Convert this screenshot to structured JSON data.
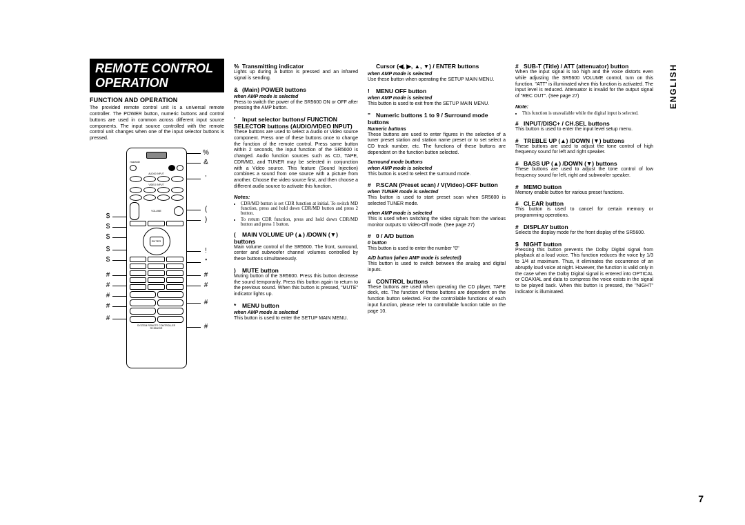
{
  "page": {
    "number": "7",
    "language_tab": "ENGLISH"
  },
  "title": "REMOTE CONTROL OPERATION",
  "func_op_heading": "FUNCTION AND OPERATION",
  "intro": "The provided remote control unit is a universal remote controller. The POWER button, numeric buttons and control buttons are used in common across different input source components. The input source controlled with the remote control unit changes when one of the input selector buttons is pressed.",
  "callouts_left": [
    "$",
    "$",
    "$",
    "$",
    "$",
    "#",
    "#",
    "#",
    "#",
    "#"
  ],
  "callouts_right": [
    "%",
    "&",
    "'",
    "(",
    ")",
    "!",
    "\"",
    "#",
    "#",
    "#",
    "#"
  ],
  "sections_col2": [
    {
      "sym": "%",
      "head": "Transmitting indicator",
      "body": "Lights up during a button is pressed and an infrared signal is sending."
    },
    {
      "sym": "&",
      "head": "(Main) POWER buttons",
      "sub": "when AMP mode is selected",
      "body": "Press to switch the power of the SR5600 ON or OFF after pressing the AMP button."
    },
    {
      "sym": "'",
      "head": "Input selector buttons/ FUNCTION SELECTOR buttons (AUDIO/VIDEO INPUT)",
      "body": "These buttons are used to select a Audio or Video source component. Press one of these buttons once to change the function of the remote control. Press same button within 2 seconds, the input function of the SR5600 is changed. Audio function sources such as CD, TAPE, CDR/MD, and TUNER may be selected in conjunction with a Video source. This feature (Sound Injection) combines a sound from one source with a picture from another. Choose the video source first, and then choose a different audio source to activate this function.",
      "notes_head": "Notes:",
      "notes": [
        "CDR/MD button is set CDR function at initial. To switch MD function, press and hold down CDR/MD button and press 2 button.",
        "To return CDR function, press and hold down CDR/MD button and press 1 button."
      ]
    },
    {
      "sym": "(",
      "head": "MAIN VOLUME UP (▲) /DOWN (▼) buttons",
      "body": "Main volume control of the SR5600. The front, surround, center and subwoofer channel volumes controlled by these buttons simultaneously."
    },
    {
      "sym": ")",
      "head": "MUTE button",
      "body": "Muting button of the SR5600. Press this button decrease the sound temporarily. Press this button again to return to the previous sound. When this button is pressed, \"MUTE\" indicator lights up."
    },
    {
      "sym": "*",
      "head": "MENU button",
      "sub": "when AMP mode is selected",
      "body": "This button is used to enter the SETUP MAIN MENU."
    }
  ],
  "sections_col3": [
    {
      "sym": "",
      "head": "Cursor (◀, ▶, ▲, ▼) / ENTER buttons",
      "sub": "when AMP mode is selected",
      "body": "Use these button when operating the SETUP MAIN MENU."
    },
    {
      "sym": "!",
      "head": "MENU OFF button",
      "sub": "when AMP mode is selected",
      "body": "This button is used to exit from the SETUP MAIN MENU."
    },
    {
      "sym": "\"",
      "head": "Numeric buttons 1 to 9 / Surround mode buttons",
      "sub": "Numeric buttons",
      "body": "These buttons are used to enter figures in the selection of a tuner preset station and station name preset or to set select a CD track number, etc. The functions of these buttons are dependent on the function button selected.",
      "sub2": "Surround mode buttons",
      "sub3": "when AMP mode is selected",
      "body2": "This button is used to select the surround mode."
    },
    {
      "sym": "#",
      "head": "P.SCAN (Preset scan) / V(Video)-OFF button",
      "sub": "when TUNER mode is selected",
      "body": "This button is used to start preset scan when SR5600 is selected TUNER mode.",
      "sub2": "when AMP mode is selected",
      "body2": "This is used when switching the video signals from the various monitor outputs to Video-Off mode. (See page 27)"
    },
    {
      "sym": "#",
      "head": "0 / A/D button",
      "sub": "0 button",
      "body": "This button is used to enter the number \"0\"",
      "sub2": "A/D button (when AMP mode is selected)",
      "body2": "This button is used to switch between the analog and digital inputs."
    },
    {
      "sym": "#",
      "head": "CONTROL buttons",
      "body": "These buttons are used when operating the CD player, TAPE deck, etc. The function of these buttons are dependent on the function button selected. For the controllable functions of each input function, please refer to controllable function table on the page 10."
    }
  ],
  "sections_col4": [
    {
      "sym": "#",
      "head": "SUB-T (Title) / ATT (attenuator) button",
      "body": "When the input signal is too high and the voice distorts even while adjusting the SR5600 VOLUME control, turn on this function. \"ATT\" is illuminated when this function is activated. The input level is reduced. Attenuator is invalid for the output signal of \"REC OUT\". (See page 27)",
      "notes_head": "Note:",
      "notes": [
        "This function is unavailable while the digital input is selected."
      ]
    },
    {
      "sym": "#",
      "head": "INPUT/DISC+ / CH.SEL buttons",
      "body": "This button is used to enter the input level setup menu."
    },
    {
      "sym": "#",
      "head": "TREBLE UP (▲) /DOWN (▼) buttons",
      "body": "These buttons are used to adjust the tone control of high frequency sound for left and right speaker."
    },
    {
      "sym": "#",
      "head": "BASS UP (▲) /DOWN (▼) buttons",
      "body": "These buttons are used to adjust the tone control of low frequency sound for left, right and subwoofer speaker."
    },
    {
      "sym": "#",
      "head": "MEMO button",
      "body": "Memory enable button for various preset functions."
    },
    {
      "sym": "#",
      "head": "CLEAR button",
      "body": "This button is used to cancel for certain memory or programming operations."
    },
    {
      "sym": "#",
      "head": "DISPLAY button",
      "body": "Selects the display mode for the front display of the SR5600."
    },
    {
      "sym": "$",
      "head": "NIGHT button",
      "body": "Pressing this button prevents the Dolby Digital signal from playback at a loud voice. This function reduces the voice by 1/3 to 1/4 at maximum. Thus, it eliminates the occurrence of an abruptly loud voice at night. However, the function is valid only in the case when the Dolby Digital signal is entered into OPTICAL or COAXIAL and data to compress the voice exists in the signal to be played back. When this button is pressed, the \"NIGHT\" indicator is illuminated."
    }
  ]
}
